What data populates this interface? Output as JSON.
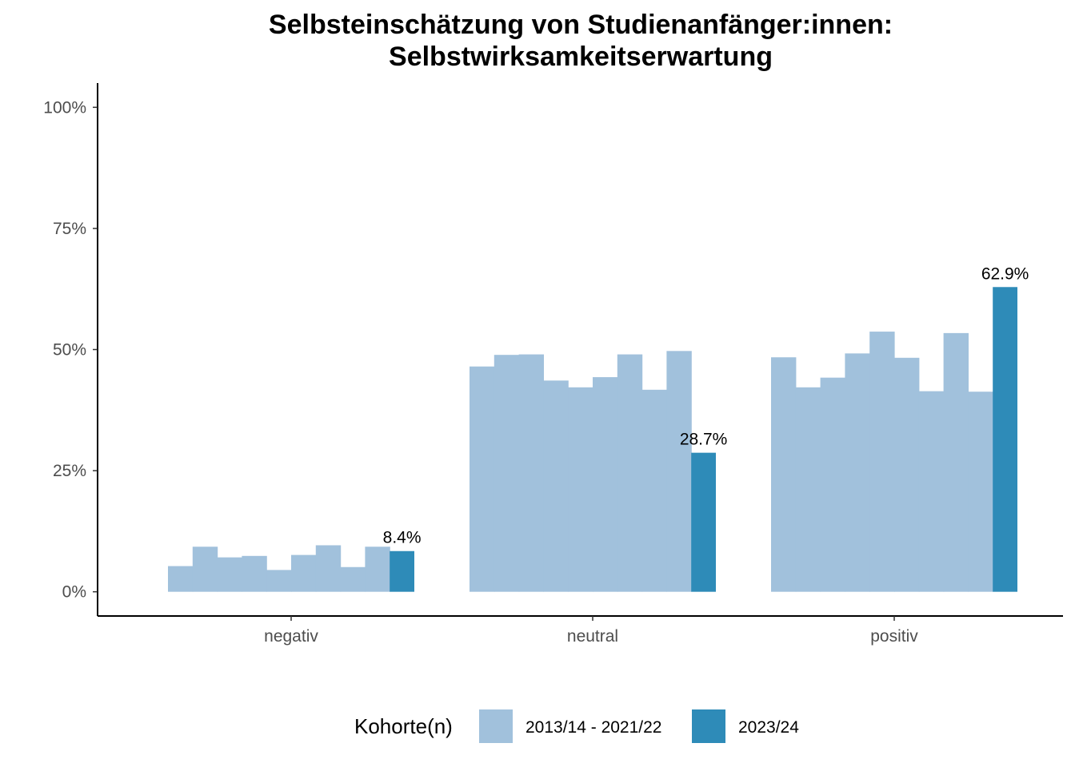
{
  "chart_data": {
    "type": "bar",
    "title_lines": [
      "Selbsteinschätzung von Studienanfänger:innen:",
      "Selbstwirksamkeitserwartung"
    ],
    "categories": [
      "negativ",
      "neutral",
      "positiv"
    ],
    "y_ticks": [
      "0%",
      "25%",
      "50%",
      "75%",
      "100%"
    ],
    "y_tick_values": [
      0,
      25,
      50,
      75,
      100
    ],
    "ylim": [
      -5,
      105
    ],
    "series": [
      {
        "name": "2013/14 - 2021/22",
        "color": "#a1c1dc",
        "values_by_category": [
          [
            5.3,
            9.3,
            7.1,
            7.4,
            4.5,
            7.6,
            9.6,
            5.1,
            9.3
          ],
          [
            46.5,
            48.9,
            49.0,
            43.6,
            42.2,
            44.3,
            49.0,
            41.7,
            49.7
          ],
          [
            48.4,
            42.2,
            44.2,
            49.2,
            53.7,
            48.3,
            41.4,
            53.4,
            41.3
          ]
        ]
      },
      {
        "name": "2023/24",
        "color": "#2e8bb8",
        "values": [
          8.4,
          28.7,
          62.9
        ],
        "labels": [
          "8.4%",
          "28.7%",
          "62.9%"
        ]
      }
    ],
    "legend": {
      "title": "Kohorte(n)",
      "entries": [
        "2013/14 - 2021/22",
        "2023/24"
      ],
      "position": "bottom"
    },
    "grid": false
  }
}
